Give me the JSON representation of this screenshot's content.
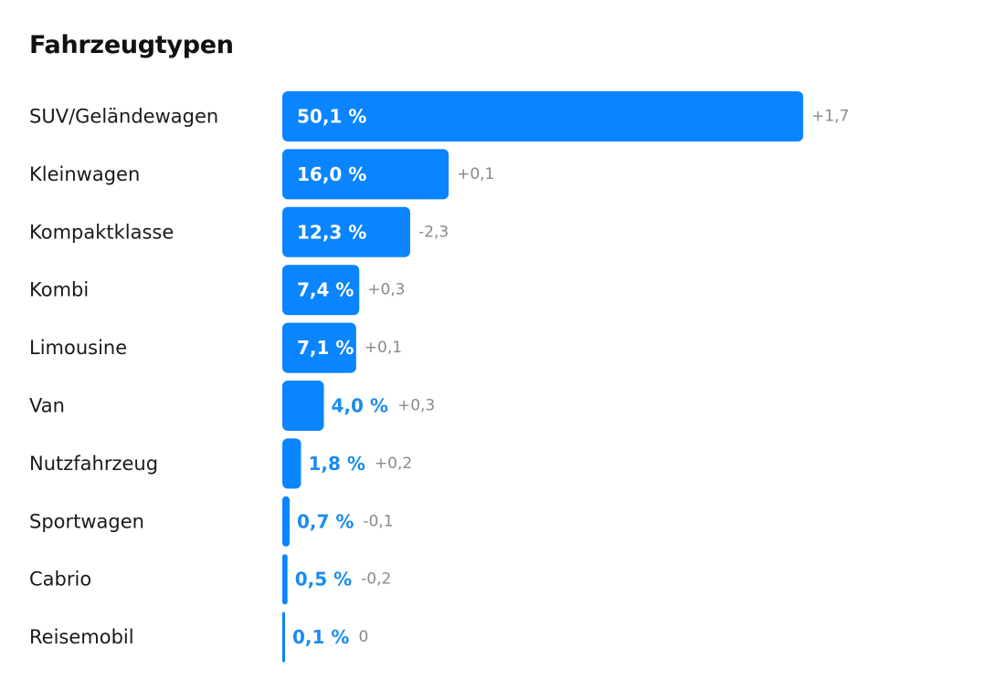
{
  "title": "Fahrzeugtypen",
  "chart_data": {
    "type": "bar",
    "orientation": "horizontal",
    "title": "Fahrzeugtypen",
    "categories": [
      "SUV/Geländewagen",
      "Kleinwagen",
      "Kompaktklasse",
      "Kombi",
      "Limousine",
      "Van",
      "Nutzfahrzeug",
      "Sportwagen",
      "Cabrio",
      "Reisemobil"
    ],
    "values": [
      50.1,
      16.0,
      12.3,
      7.4,
      7.1,
      4.0,
      1.8,
      0.7,
      0.5,
      0.1
    ],
    "value_labels": [
      "50,1 %",
      "16,0 %",
      "12,3 %",
      "7,4 %",
      "7,1 %",
      "4,0 %",
      "1,8 %",
      "0,7 %",
      "0,5 %",
      "0,1 %"
    ],
    "changes": [
      "+1,7",
      "+0,1",
      "-2,3",
      "+0,3",
      "+0,1",
      "+0,3",
      "+0,2",
      "-0,1",
      "-0,2",
      "0"
    ],
    "xlabel": "",
    "ylabel": "",
    "grid": false,
    "legend": "none",
    "colors": {
      "bar": "#0a84ff",
      "value_outside": "#1a8cf0",
      "value_inside": "#ffffff",
      "change": "#8a8a8a"
    }
  }
}
